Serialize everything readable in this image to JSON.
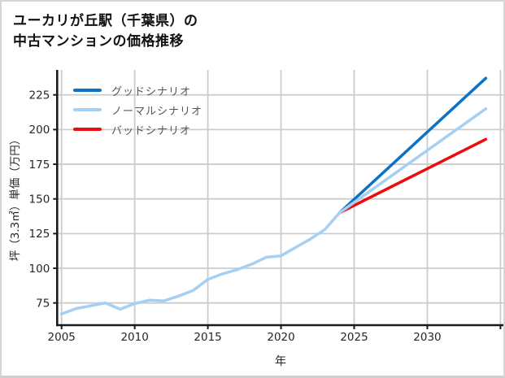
{
  "title": {
    "line1": "ユーカリが丘駅（千葉県）の",
    "line2": "中古マンションの価格推移"
  },
  "axes": {
    "xlabel": "年",
    "ylabel": "坪（3.3㎡）単価（万円）"
  },
  "legend": {
    "items": [
      {
        "label": "グッドシナリオ",
        "color": "#0d72c4"
      },
      {
        "label": "ノーマルシナリオ",
        "color": "#a5cff3"
      },
      {
        "label": "バッドシナリオ",
        "color": "#ee0a0e"
      }
    ]
  },
  "chart_data": {
    "type": "line",
    "title": "ユーカリが丘駅（千葉県）の中古マンションの価格推移",
    "xlabel": "年",
    "ylabel": "坪（3.3㎡）単価（万円）",
    "x_ticks": [
      2005,
      2010,
      2015,
      2020,
      2025,
      2030
    ],
    "x_grid_unlabeled": [
      2035
    ],
    "y_ticks": [
      75,
      100,
      125,
      150,
      175,
      200,
      225
    ],
    "xlim": [
      2004.7,
      2035.2
    ],
    "ylim": [
      59,
      243
    ],
    "grid": true,
    "grid_color": "#cccccc",
    "spine_color": "#1a1a1a",
    "tick_label_color": "#262626",
    "legend_position": "upper-left-inside",
    "series": [
      {
        "name": "グッドシナリオ",
        "color": "#0d72c4",
        "x": [
          2024,
          2034
        ],
        "values": [
          140,
          237
        ]
      },
      {
        "name": "ノーマルシナリオ",
        "color": "#a5cff3",
        "x": [
          2005,
          2006,
          2007,
          2008,
          2009,
          2010,
          2011,
          2012,
          2013,
          2014,
          2015,
          2016,
          2017,
          2018,
          2019,
          2020,
          2021,
          2022,
          2023,
          2024,
          2034
        ],
        "values": [
          67,
          71,
          73,
          75,
          70.5,
          74.5,
          77,
          76.5,
          80,
          84,
          92,
          96,
          99,
          103,
          108,
          109,
          115,
          121,
          128,
          140,
          215
        ]
      },
      {
        "name": "バッドシナリオ",
        "color": "#ee0a0e",
        "x": [
          2024,
          2034
        ],
        "values": [
          140,
          193
        ]
      }
    ]
  }
}
